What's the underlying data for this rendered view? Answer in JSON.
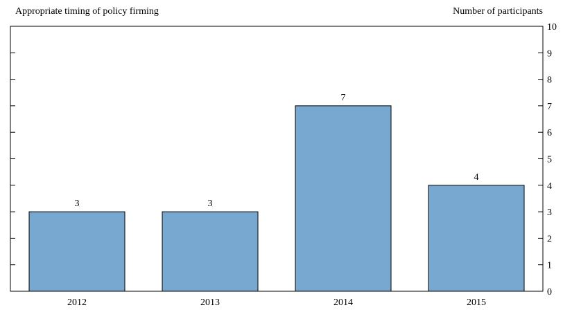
{
  "chart_data": {
    "type": "bar",
    "title": "Appropriate timing of policy firming",
    "ylabel": "Number of participants",
    "xlabel": "",
    "categories": [
      "2012",
      "2013",
      "2014",
      "2015"
    ],
    "values": [
      3,
      3,
      7,
      4
    ],
    "data_labels": [
      "3",
      "3",
      "7",
      "4"
    ],
    "ylim": [
      0,
      10
    ],
    "yticks": [
      0,
      1,
      2,
      3,
      4,
      5,
      6,
      7,
      8,
      9,
      10
    ],
    "ytick_labels": [
      "0",
      "1",
      "2",
      "3",
      "4",
      "5",
      "6",
      "7",
      "8",
      "9",
      "10"
    ],
    "bar_color": "#78a8d0",
    "grid": false,
    "legend": "none"
  }
}
